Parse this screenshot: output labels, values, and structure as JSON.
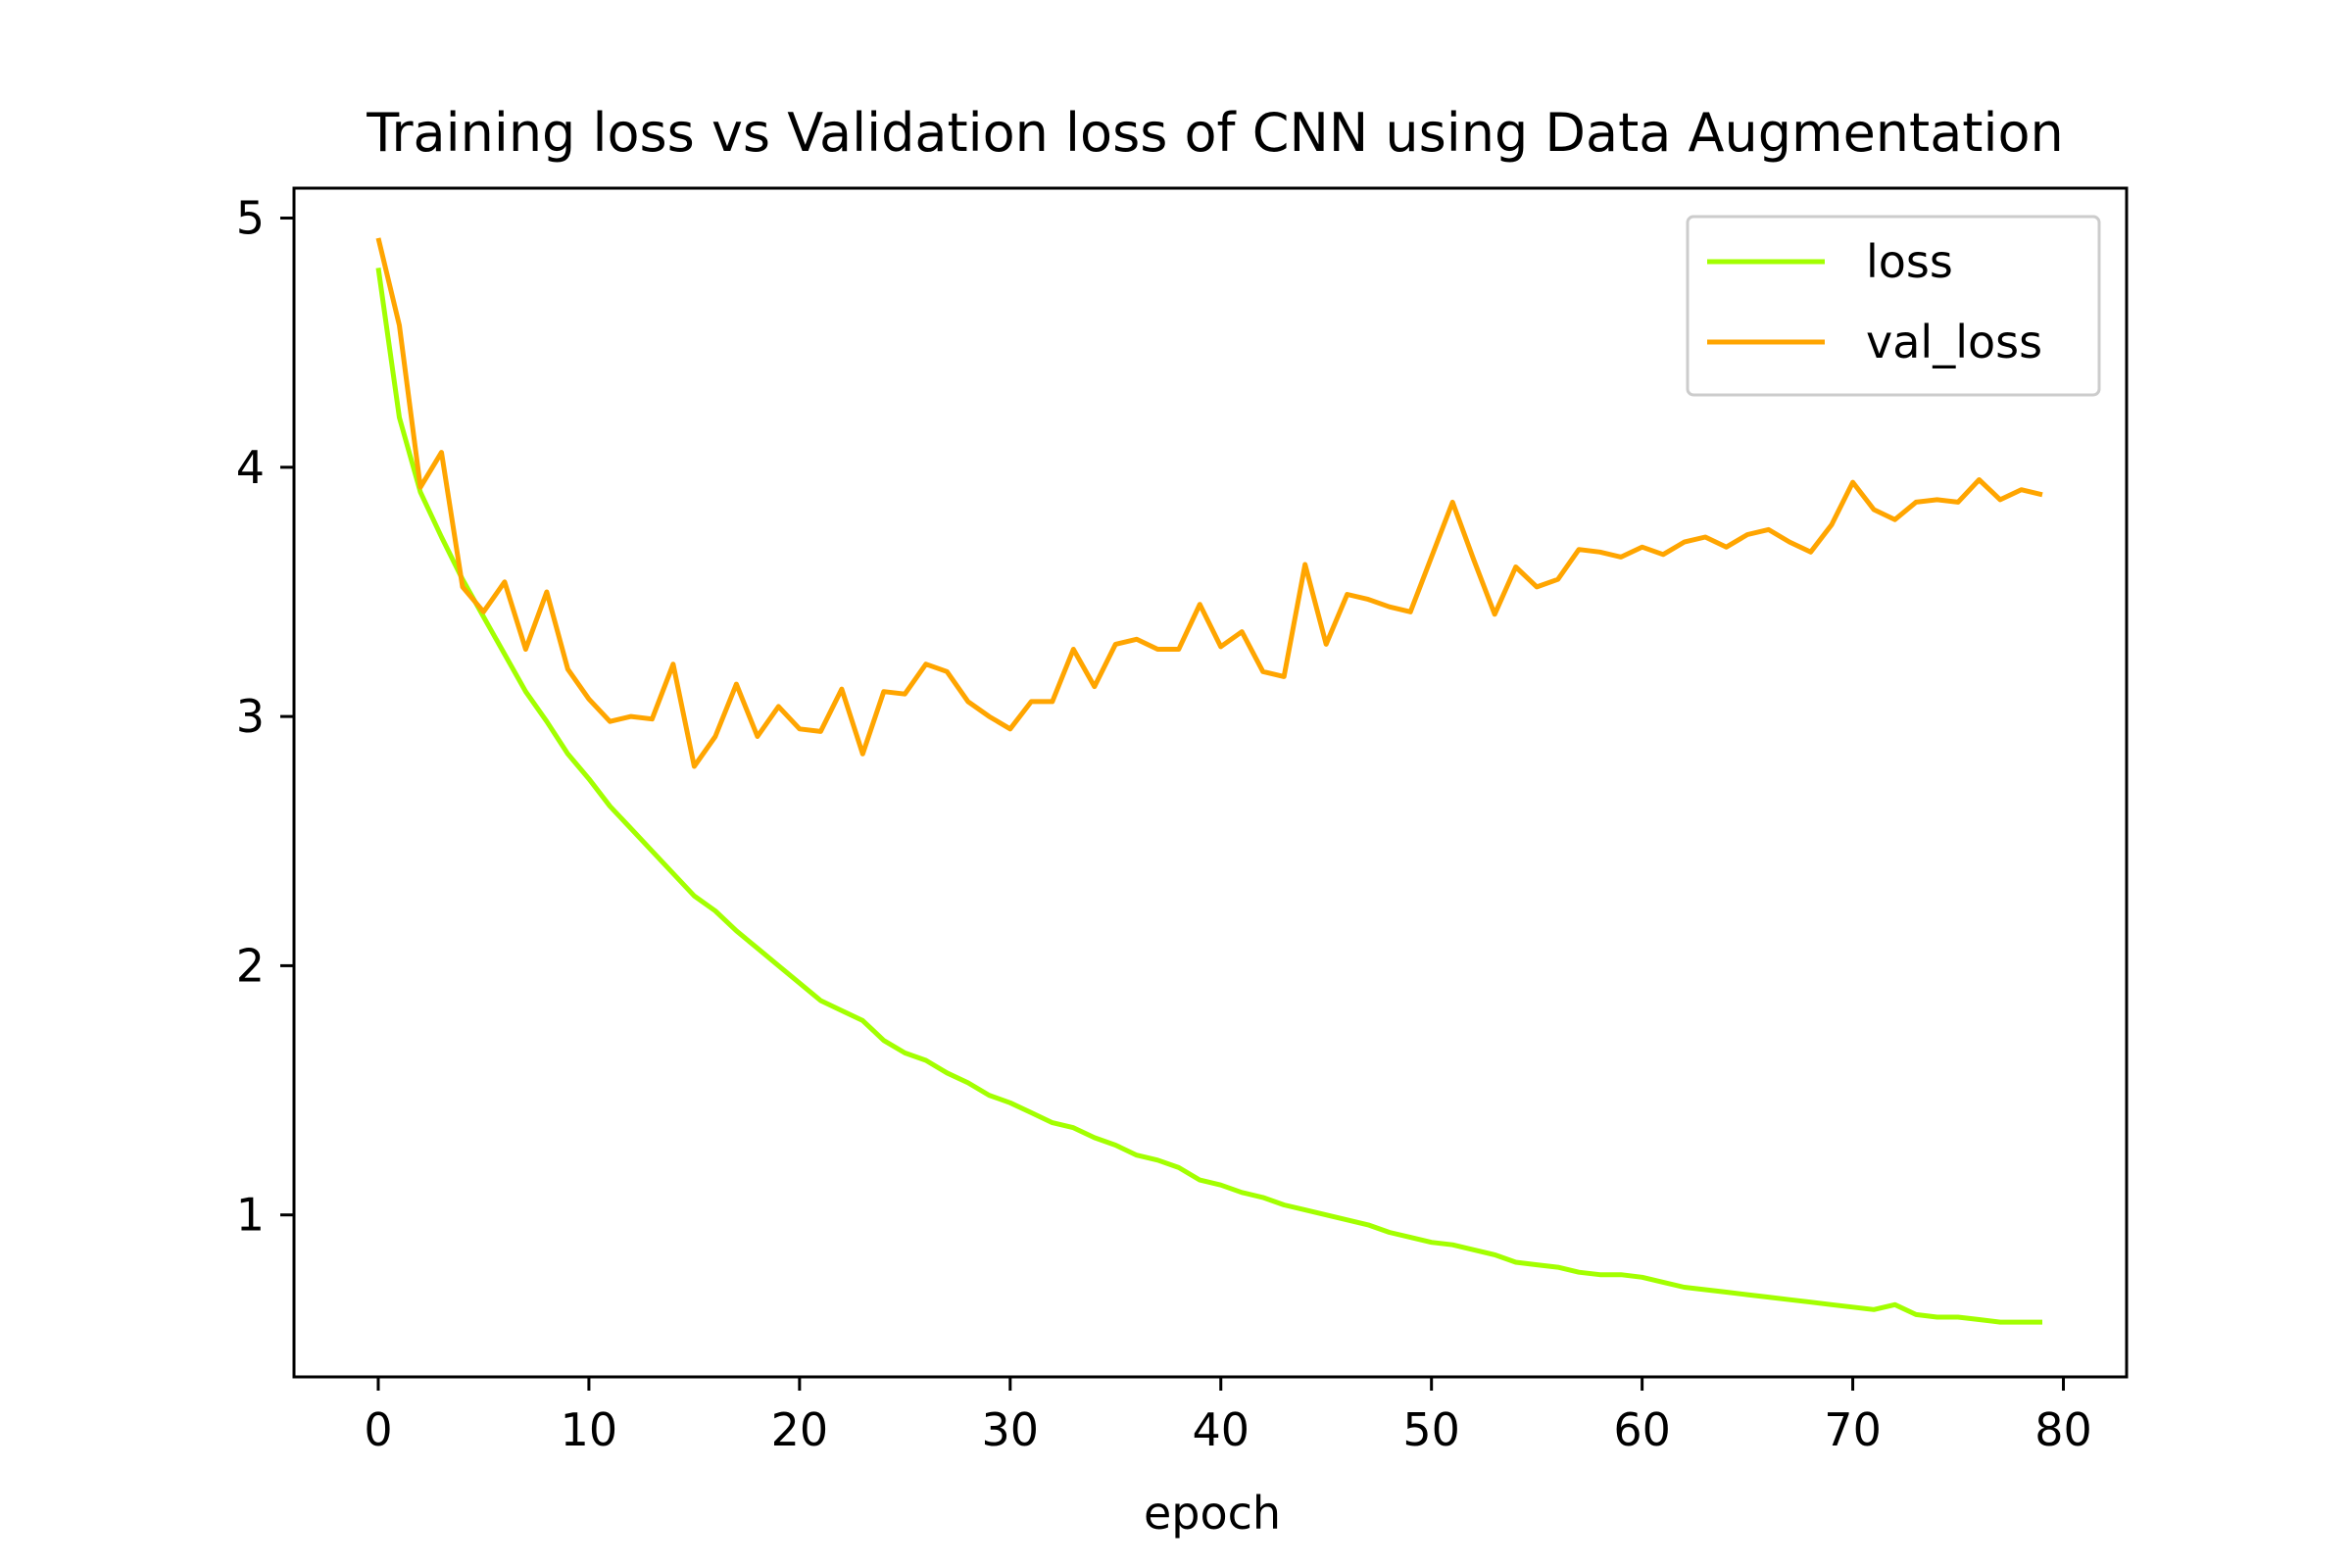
{
  "chart_data": {
    "type": "line",
    "title": "Training loss vs Validation loss of CNN using Data Augmentation",
    "xlabel": "epoch",
    "ylabel": "",
    "xlim": [
      -4,
      83
    ],
    "ylim": [
      0.35,
      5.12
    ],
    "xticks": [
      0,
      10,
      20,
      30,
      40,
      50,
      60,
      70,
      80
    ],
    "yticks": [
      1,
      2,
      3,
      4,
      5
    ],
    "grid": false,
    "legend_position": "top-right",
    "x": [
      0,
      1,
      2,
      3,
      4,
      5,
      6,
      7,
      8,
      9,
      10,
      11,
      12,
      13,
      14,
      15,
      16,
      17,
      18,
      19,
      20,
      21,
      22,
      23,
      24,
      25,
      26,
      27,
      28,
      29,
      30,
      31,
      32,
      33,
      34,
      35,
      36,
      37,
      38,
      39,
      40,
      41,
      42,
      43,
      44,
      45,
      46,
      47,
      48,
      49,
      50,
      51,
      52,
      53,
      54,
      55,
      56,
      57,
      58,
      59,
      60,
      61,
      62,
      63,
      64,
      65,
      66,
      67,
      68,
      69,
      70,
      71,
      72,
      73,
      74,
      75,
      76,
      77,
      78,
      79
    ],
    "series": [
      {
        "name": "loss",
        "color": "#a3ff00",
        "values": [
          4.8,
          4.2,
          3.9,
          3.72,
          3.55,
          3.4,
          3.25,
          3.1,
          2.98,
          2.85,
          2.75,
          2.64,
          2.55,
          2.46,
          2.37,
          2.28,
          2.22,
          2.14,
          2.07,
          2.0,
          1.93,
          1.86,
          1.82,
          1.78,
          1.7,
          1.65,
          1.62,
          1.57,
          1.53,
          1.48,
          1.45,
          1.41,
          1.37,
          1.35,
          1.31,
          1.28,
          1.24,
          1.22,
          1.19,
          1.14,
          1.12,
          1.09,
          1.07,
          1.04,
          1.02,
          1.0,
          0.98,
          0.96,
          0.93,
          0.91,
          0.89,
          0.88,
          0.86,
          0.84,
          0.81,
          0.8,
          0.79,
          0.77,
          0.76,
          0.76,
          0.75,
          0.73,
          0.71,
          0.7,
          0.69,
          0.68,
          0.67,
          0.66,
          0.65,
          0.64,
          0.63,
          0.62,
          0.64,
          0.6,
          0.59,
          0.59,
          0.58,
          0.57,
          0.57,
          0.57
        ]
      },
      {
        "name": "val_loss",
        "color": "#ffa500",
        "values": [
          4.92,
          4.57,
          3.92,
          4.06,
          3.52,
          3.42,
          3.54,
          3.27,
          3.5,
          3.19,
          3.07,
          2.98,
          3.0,
          2.99,
          3.21,
          2.8,
          2.92,
          3.13,
          2.92,
          3.04,
          2.95,
          2.94,
          3.11,
          2.85,
          3.1,
          3.09,
          3.21,
          3.18,
          3.06,
          3.0,
          2.95,
          3.06,
          3.06,
          3.27,
          3.12,
          3.29,
          3.31,
          3.27,
          3.27,
          3.45,
          3.28,
          3.34,
          3.18,
          3.16,
          3.61,
          3.29,
          3.49,
          3.47,
          3.44,
          3.42,
          3.64,
          3.86,
          3.63,
          3.41,
          3.6,
          3.52,
          3.55,
          3.67,
          3.66,
          3.64,
          3.68,
          3.65,
          3.7,
          3.72,
          3.68,
          3.73,
          3.75,
          3.7,
          3.66,
          3.77,
          3.94,
          3.83,
          3.79,
          3.86,
          3.87,
          3.86,
          3.95,
          3.87,
          3.91,
          3.89
        ]
      }
    ]
  }
}
